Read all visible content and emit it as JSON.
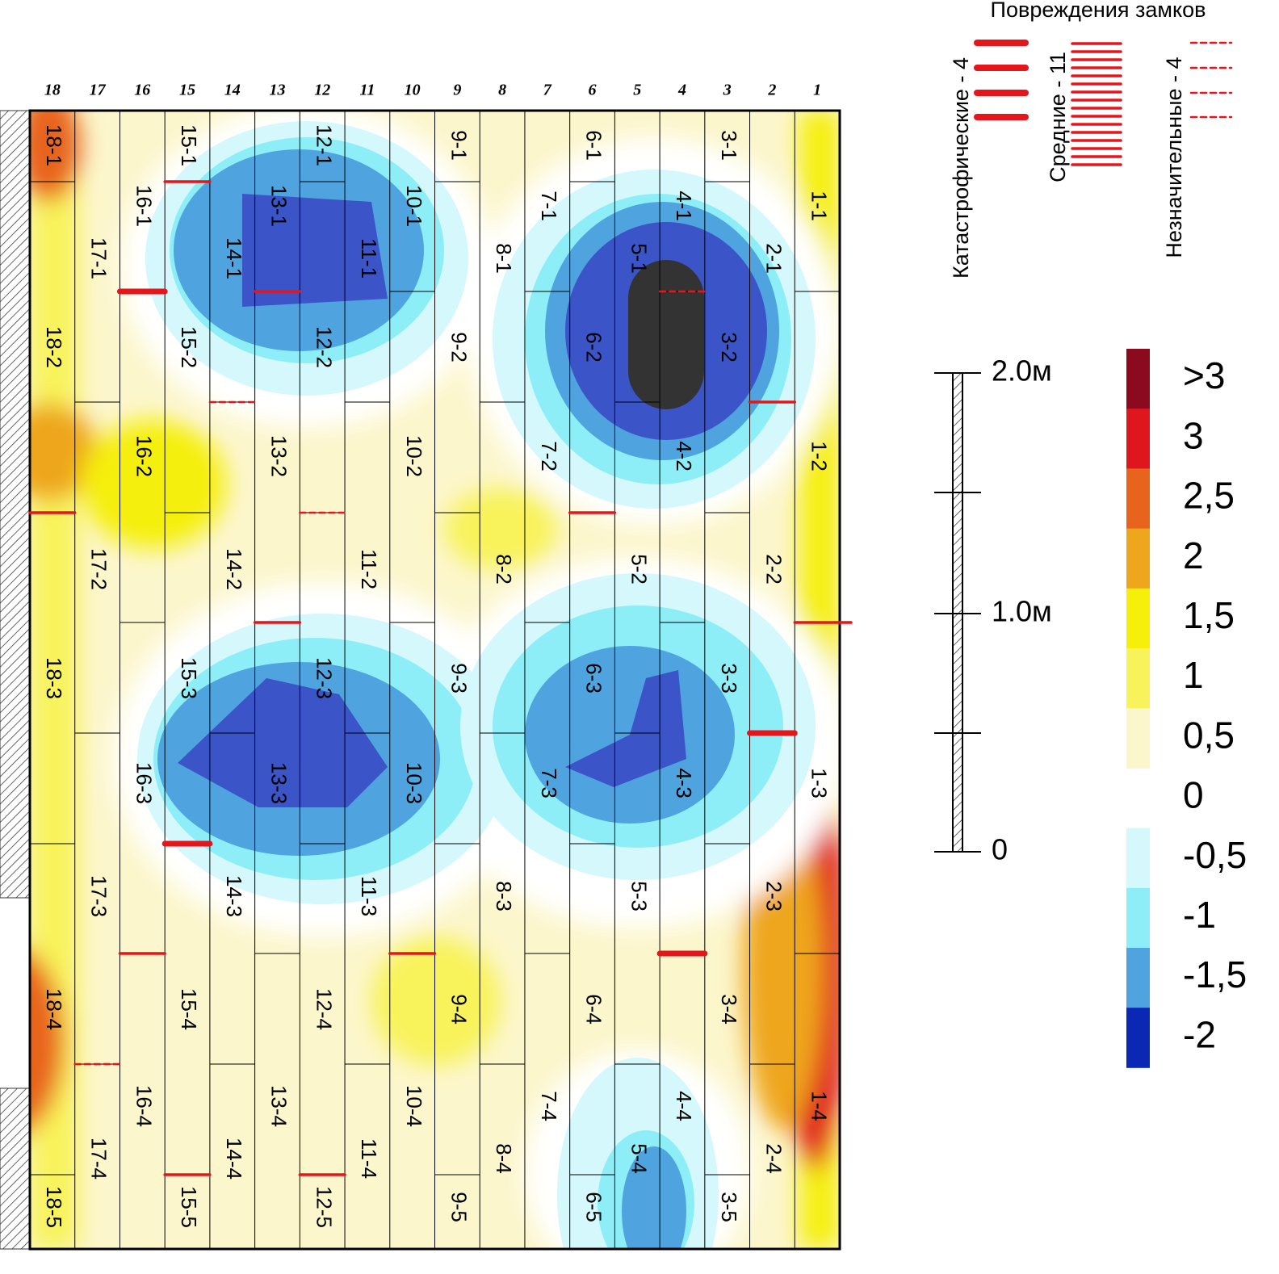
{
  "columns": [
    {
      "number": "18",
      "cells": [
        "18-1",
        "18-2",
        "18-3",
        "18-4",
        "18-5"
      ]
    },
    {
      "number": "17",
      "cells": [
        "17-1",
        "17-2",
        "17-3",
        "17-4"
      ]
    },
    {
      "number": "16",
      "cells": [
        "16-1",
        "16-2",
        "16-3",
        "16-4"
      ]
    },
    {
      "number": "15",
      "cells": [
        "15-1",
        "15-2",
        "15-3",
        "15-4",
        "15-5"
      ]
    },
    {
      "number": "14",
      "cells": [
        "14-1",
        "14-2",
        "14-3",
        "14-4"
      ]
    },
    {
      "number": "13",
      "cells": [
        "13-1",
        "13-2",
        "13-3",
        "13-4"
      ]
    },
    {
      "number": "12",
      "cells": [
        "12-1",
        "12-2",
        "12-3",
        "12-4",
        "12-5"
      ]
    },
    {
      "number": "11",
      "cells": [
        "11-1",
        "11-2",
        "11-3",
        "11-4"
      ]
    },
    {
      "number": "10",
      "cells": [
        "10-1",
        "10-2",
        "10-3",
        "10-4"
      ]
    },
    {
      "number": "9",
      "cells": [
        "9-1",
        "9-2",
        "9-3",
        "9-4",
        "9-5"
      ]
    },
    {
      "number": "8",
      "cells": [
        "8-1",
        "8-2",
        "8-3",
        "8-4"
      ]
    },
    {
      "number": "7",
      "cells": [
        "7-1",
        "7-2",
        "7-3",
        "7-4"
      ]
    },
    {
      "number": "6",
      "cells": [
        "6-1",
        "6-2",
        "6-3",
        "6-4",
        "6-5"
      ]
    },
    {
      "number": "5",
      "cells": [
        "5-1",
        "5-2",
        "5-3",
        "5-4"
      ]
    },
    {
      "number": "4",
      "cells": [
        "4-1",
        "4-2",
        "4-3",
        "4-4"
      ]
    },
    {
      "number": "3",
      "cells": [
        "3-1",
        "3-2",
        "3-3",
        "3-4",
        "3-5"
      ]
    },
    {
      "number": "2",
      "cells": [
        "2-1",
        "2-2",
        "2-3",
        "2-4"
      ]
    },
    {
      "number": "1",
      "cells": [
        "1-1",
        "1-2",
        "1-3",
        "1-4"
      ]
    }
  ],
  "legend": {
    "title": "Повреждения замков",
    "items": [
      {
        "label": "Катастрофические - 4",
        "style": "catastrophic"
      },
      {
        "label": "Средние - 11",
        "style": "medium"
      },
      {
        "label": "Незначительные - 4",
        "style": "minor"
      }
    ]
  },
  "scale": {
    "labels": [
      "2.0м",
      "1.0м",
      "0"
    ]
  },
  "color_scale": [
    {
      "label": ">3",
      "color": "#8b0a1e"
    },
    {
      "label": "3",
      "color": "#e0161e"
    },
    {
      "label": "2,5",
      "color": "#e8631c"
    },
    {
      "label": "2",
      "color": "#eea61c"
    },
    {
      "label": "1,5",
      "color": "#f5ef0a"
    },
    {
      "label": "1",
      "color": "#f8f35a"
    },
    {
      "label": "0,5",
      "color": "#fcf6cc"
    },
    {
      "label": "0",
      "color": "#ffffff"
    },
    {
      "label": "-0,5",
      "color": "#d4f8fb"
    },
    {
      "label": "-1",
      "color": "#8eeef7"
    },
    {
      "label": "-1,5",
      "color": "#4fa4e0"
    },
    {
      "label": "-2",
      "color": "#0b28b4"
    }
  ]
}
